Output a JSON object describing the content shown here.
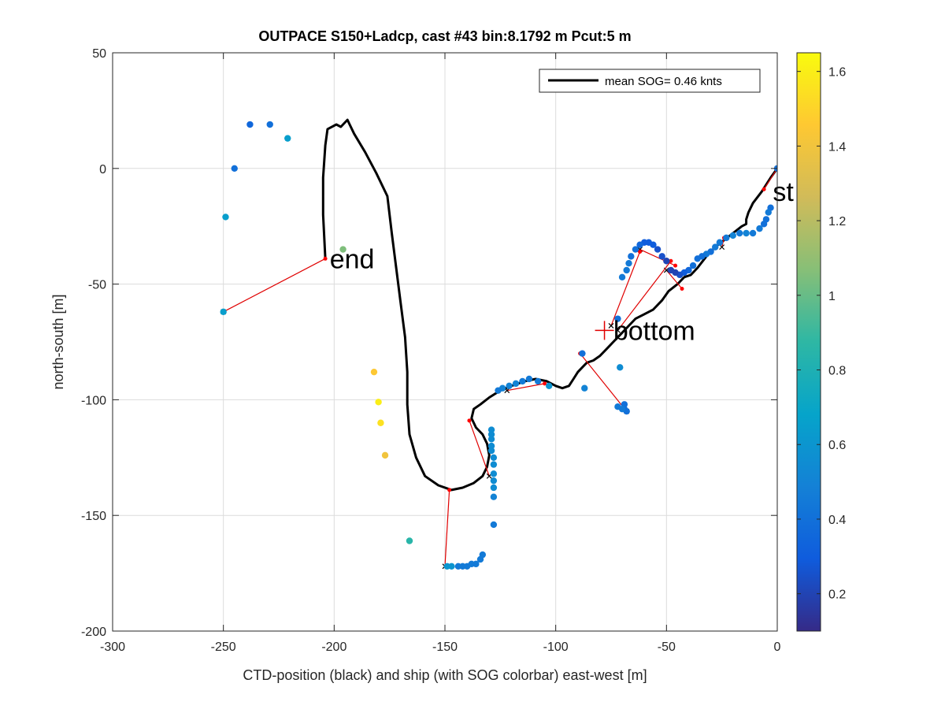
{
  "chart_data": {
    "type": "scatter",
    "title": "OUTPACE S150+Ladcp, cast #43 bin:8.1792 m  Pcut:5 m",
    "xlabel": "CTD-position (black) and ship (with SOG colorbar) east-west [m]",
    "ylabel": "north-south [m]",
    "xlim": [
      -300,
      0
    ],
    "ylim": [
      -200,
      50
    ],
    "xticks": [
      -300,
      -250,
      -200,
      -150,
      -100,
      -50,
      0
    ],
    "yticks": [
      -200,
      -150,
      -100,
      -50,
      0,
      50
    ],
    "grid": true,
    "legend": {
      "position": "top-right",
      "entries": [
        {
          "label": "mean SOG=  0.46 knts",
          "color": "#000000"
        }
      ]
    },
    "colorbar": {
      "range": [
        0.1,
        1.65
      ],
      "ticks": [
        0.2,
        0.4,
        0.6,
        0.8,
        1,
        1.2,
        1.4,
        1.6
      ],
      "tick_labels": [
        "0.2",
        "0.4",
        "0.6",
        "0.8",
        "1",
        "1.2",
        "1.4",
        "1.6"
      ],
      "colormap": "parula"
    },
    "annotations": [
      {
        "text": "st",
        "x": -2,
        "y": -10
      },
      {
        "text": "end",
        "x": -202,
        "y": -39
      },
      {
        "text": "bottom",
        "x": -74,
        "y": -70
      }
    ],
    "bottom_marker": {
      "x": -78,
      "y": -70
    },
    "ctd_track": [
      [
        0,
        0
      ],
      [
        -3,
        -4
      ],
      [
        -7,
        -10
      ],
      [
        -11,
        -15
      ],
      [
        -13,
        -19
      ],
      [
        -14,
        -22
      ],
      [
        -14,
        -24
      ],
      [
        -16,
        -25
      ],
      [
        -20,
        -28
      ],
      [
        -24,
        -31
      ],
      [
        -28,
        -34
      ],
      [
        -32,
        -38
      ],
      [
        -36,
        -43
      ],
      [
        -39,
        -46
      ],
      [
        -42,
        -47
      ],
      [
        -45,
        -50
      ],
      [
        -49,
        -53
      ],
      [
        -52,
        -57
      ],
      [
        -56,
        -61
      ],
      [
        -60,
        -63
      ],
      [
        -64,
        -65
      ],
      [
        -68,
        -69
      ],
      [
        -71,
        -72
      ],
      [
        -74,
        -75
      ],
      [
        -77,
        -78
      ],
      [
        -80,
        -81
      ],
      [
        -83,
        -83
      ],
      [
        -86,
        -84
      ],
      [
        -88,
        -86
      ],
      [
        -90,
        -88
      ],
      [
        -92,
        -91
      ],
      [
        -94,
        -94
      ],
      [
        -97,
        -95
      ],
      [
        -100,
        -94
      ],
      [
        -104,
        -92
      ],
      [
        -109,
        -91
      ],
      [
        -114,
        -92
      ],
      [
        -120,
        -94
      ],
      [
        -125,
        -96
      ],
      [
        -130,
        -99
      ],
      [
        -134,
        -102
      ],
      [
        -137,
        -104
      ],
      [
        -138,
        -108
      ],
      [
        -136,
        -112
      ],
      [
        -133,
        -115
      ],
      [
        -131,
        -119
      ],
      [
        -130,
        -124
      ],
      [
        -131,
        -129
      ],
      [
        -133,
        -133
      ],
      [
        -137,
        -136
      ],
      [
        -142,
        -138
      ],
      [
        -147,
        -139
      ],
      [
        -153,
        -137
      ],
      [
        -159,
        -133
      ],
      [
        -163,
        -125
      ],
      [
        -166,
        -115
      ],
      [
        -167,
        -102
      ],
      [
        -167,
        -88
      ],
      [
        -168,
        -73
      ],
      [
        -170,
        -58
      ],
      [
        -172,
        -43
      ],
      [
        -174,
        -28
      ],
      [
        -176,
        -12
      ],
      [
        -181,
        -2
      ],
      [
        -186,
        7
      ],
      [
        -191,
        15
      ],
      [
        -193,
        19
      ],
      [
        -194,
        21
      ],
      [
        -197,
        18
      ],
      [
        -199,
        19
      ],
      [
        -203,
        17
      ],
      [
        -204,
        10
      ],
      [
        -205,
        -4
      ],
      [
        -205,
        -20
      ],
      [
        -204,
        -39
      ]
    ],
    "ship_sog": [
      [
        0,
        0,
        0.4
      ],
      [
        -3,
        -17,
        0.4
      ],
      [
        -4,
        -19,
        0.45
      ],
      [
        -5,
        -22,
        0.4
      ],
      [
        -6,
        -24,
        0.4
      ],
      [
        -8,
        -26,
        0.45
      ],
      [
        -11,
        -28,
        0.45
      ],
      [
        -14,
        -28,
        0.5
      ],
      [
        -17,
        -28,
        0.45
      ],
      [
        -20,
        -29,
        0.5
      ],
      [
        -23,
        -30,
        0.45
      ],
      [
        -26,
        -32,
        0.45
      ],
      [
        -28,
        -34,
        0.45
      ],
      [
        -30,
        -36,
        0.4
      ],
      [
        -32,
        -37,
        0.45
      ],
      [
        -34,
        -38,
        0.4
      ],
      [
        -36,
        -39,
        0.4
      ],
      [
        -38,
        -42,
        0.4
      ],
      [
        -40,
        -44,
        0.35
      ],
      [
        -42,
        -45,
        0.3
      ],
      [
        -44,
        -46,
        0.25
      ],
      [
        -46,
        -45,
        0.2
      ],
      [
        -48,
        -44,
        0.2
      ],
      [
        -50,
        -40,
        0.2
      ],
      [
        -52,
        -38,
        0.25
      ],
      [
        -54,
        -35,
        0.25
      ],
      [
        -56,
        -33,
        0.3
      ],
      [
        -58,
        -32,
        0.3
      ],
      [
        -60,
        -32,
        0.3
      ],
      [
        -62,
        -33,
        0.35
      ],
      [
        -64,
        -35,
        0.4
      ],
      [
        -66,
        -38,
        0.4
      ],
      [
        -67,
        -41,
        0.45
      ],
      [
        -68,
        -44,
        0.45
      ],
      [
        -70,
        -47,
        0.45
      ],
      [
        -72,
        -65,
        0.4
      ],
      [
        -71,
        -86,
        0.55
      ],
      [
        -69,
        -102,
        0.4
      ],
      [
        -69,
        -104,
        0.4
      ],
      [
        -68,
        -105,
        0.4
      ],
      [
        -70,
        -104,
        0.45
      ],
      [
        -72,
        -103,
        0.45
      ],
      [
        -88,
        -80,
        0.4
      ],
      [
        -87,
        -95,
        0.5
      ],
      [
        -103,
        -94,
        0.6
      ],
      [
        -108,
        -92,
        0.45
      ],
      [
        -112,
        -91,
        0.45
      ],
      [
        -115,
        -92,
        0.45
      ],
      [
        -118,
        -93,
        0.5
      ],
      [
        -121,
        -94,
        0.5
      ],
      [
        -124,
        -95,
        0.5
      ],
      [
        -126,
        -96,
        0.45
      ],
      [
        -129,
        -113,
        0.55
      ],
      [
        -129,
        -115,
        0.55
      ],
      [
        -129,
        -117,
        0.55
      ],
      [
        -129,
        -120,
        0.55
      ],
      [
        -129,
        -122,
        0.55
      ],
      [
        -128,
        -125,
        0.55
      ],
      [
        -128,
        -128,
        0.55
      ],
      [
        -128,
        -132,
        0.55
      ],
      [
        -128,
        -135,
        0.55
      ],
      [
        -128,
        -138,
        0.55
      ],
      [
        -128,
        -142,
        0.5
      ],
      [
        -128,
        -154,
        0.45
      ],
      [
        -133,
        -167,
        0.45
      ],
      [
        -134,
        -169,
        0.45
      ],
      [
        -136,
        -171,
        0.45
      ],
      [
        -138,
        -171,
        0.45
      ],
      [
        -140,
        -172,
        0.45
      ],
      [
        -142,
        -172,
        0.45
      ],
      [
        -144,
        -172,
        0.45
      ],
      [
        -147,
        -172,
        0.6
      ],
      [
        -149,
        -172,
        0.6
      ],
      [
        -166,
        -161,
        0.85
      ],
      [
        -177,
        -124,
        1.4
      ],
      [
        -179,
        -110,
        1.55
      ],
      [
        -180,
        -101,
        1.6
      ],
      [
        -182,
        -88,
        1.45
      ],
      [
        -196,
        -35,
        1.05
      ],
      [
        -245,
        0,
        0.4
      ],
      [
        -249,
        -21,
        0.65
      ],
      [
        -250,
        -62,
        0.65
      ],
      [
        -238,
        19,
        0.35
      ],
      [
        -229,
        19,
        0.4
      ],
      [
        -221,
        13,
        0.65
      ]
    ],
    "links": [
      [
        [
          -6,
          -9
        ],
        [
          0,
          0
        ]
      ],
      [
        [
          -24,
          -30
        ],
        [
          -25,
          -34
        ]
      ],
      [
        [
          -43,
          -52
        ],
        [
          -50,
          -44
        ]
      ],
      [
        [
          -46,
          -42
        ],
        [
          -62,
          -35
        ]
      ],
      [
        [
          -62,
          -36
        ],
        [
          -75,
          -68
        ]
      ],
      [
        [
          -48,
          -40
        ],
        [
          -72,
          -70
        ]
      ],
      [
        [
          -89,
          -80
        ],
        [
          -68,
          -105
        ]
      ],
      [
        [
          -105,
          -93
        ],
        [
          -122,
          -96
        ]
      ],
      [
        [
          -139,
          -109
        ],
        [
          -130,
          -133
        ]
      ],
      [
        [
          -148,
          -139
        ],
        [
          -150,
          -172
        ]
      ],
      [
        [
          -204,
          -39
        ],
        [
          -250,
          -62
        ]
      ]
    ]
  }
}
